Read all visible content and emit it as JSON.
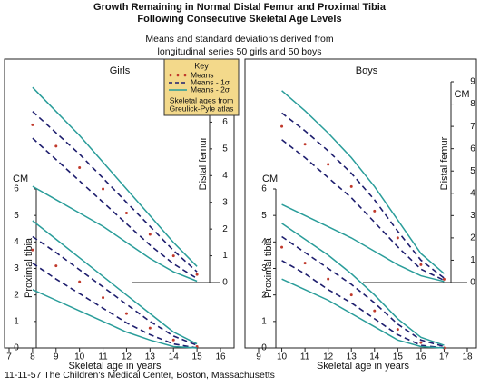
{
  "title": [
    "Growth Remaining in Normal Distal Femur and Proximal Tibia",
    "Following Consecutive Skeletal Age Levels"
  ],
  "subtitle": [
    "Means and standard deviations derived from",
    "longitudinal series 50 girls and 50 boys"
  ],
  "footer": "11-11-57 The Children's Medical Center, Boston, Massachusetts",
  "key": {
    "title": "Key",
    "items": [
      {
        "label": "Means",
        "color": "#c0392b",
        "style": "dots"
      },
      {
        "label": "Means - 1σ",
        "color": "#1e1e6e",
        "style": "dashed"
      },
      {
        "label": "Means - 2σ",
        "color": "#2a9d9a",
        "style": "solid"
      }
    ],
    "note": [
      "Skeletal ages from",
      "Greulick-Pyle atlas"
    ],
    "color": "#f3d98b"
  },
  "chart_data": [
    {
      "type": "line",
      "title": "Girls",
      "xlabel": "Skeletal age in years",
      "x": [
        8,
        9,
        10,
        11,
        12,
        13,
        14,
        15
      ],
      "xlim": [
        7,
        16
      ],
      "xticks": [
        7,
        8,
        9,
        10,
        11,
        12,
        13,
        14,
        15,
        16
      ],
      "tibia": {
        "label": "Proximal tibia",
        "unit": "CM",
        "ylim": [
          0,
          6
        ],
        "yticks": [
          0,
          1,
          2,
          3,
          4,
          5,
          6
        ],
        "series": [
          {
            "style": "solid",
            "color": "#2a9d9a",
            "values": [
              4.8,
              4.1,
              3.4,
              2.7,
              2.0,
              1.3,
              0.6,
              0.15
            ]
          },
          {
            "style": "dashed",
            "color": "#1e1e6e",
            "values": [
              4.2,
              3.6,
              2.95,
              2.3,
              1.65,
              1.0,
              0.45,
              0.1
            ]
          },
          {
            "style": "dots",
            "color": "#c0392b",
            "values": [
              3.7,
              3.1,
              2.5,
              1.9,
              1.3,
              0.75,
              0.3,
              0.05
            ]
          },
          {
            "style": "dashed",
            "color": "#1e1e6e",
            "values": [
              3.2,
              2.6,
              2.05,
              1.5,
              0.95,
              0.5,
              0.15,
              0
            ]
          },
          {
            "style": "solid",
            "color": "#2a9d9a",
            "values": [
              2.2,
              1.8,
              1.4,
              1.0,
              0.6,
              0.3,
              0.05,
              0
            ]
          }
        ]
      },
      "femur": {
        "label": "Distal femur",
        "ylim": [
          0,
          7
        ],
        "yticks": [
          0,
          1,
          2,
          3,
          4,
          5,
          6,
          7
        ],
        "series": [
          {
            "style": "solid",
            "color": "#2a9d9a",
            "values": [
              7.3,
              6.4,
              5.5,
              4.5,
              3.5,
              2.5,
              1.5,
              0.6
            ]
          },
          {
            "style": "dashed",
            "color": "#1e1e6e",
            "values": [
              6.4,
              5.6,
              4.8,
              3.9,
              3.0,
              2.1,
              1.2,
              0.4
            ]
          },
          {
            "style": "dots",
            "color": "#c0392b",
            "values": [
              5.9,
              5.1,
              4.3,
              3.5,
              2.6,
              1.8,
              1.0,
              0.3
            ]
          },
          {
            "style": "dashed",
            "color": "#1e1e6e",
            "values": [
              5.4,
              4.6,
              3.8,
              3.0,
              2.2,
              1.4,
              0.7,
              0.15
            ]
          },
          {
            "style": "solid",
            "color": "#2a9d9a",
            "values": [
              3.6,
              3.1,
              2.6,
              2.1,
              1.5,
              0.9,
              0.4,
              0.05
            ]
          }
        ]
      }
    },
    {
      "type": "line",
      "title": "Boys",
      "xlabel": "Skeletal age in years",
      "x": [
        10,
        11,
        12,
        13,
        14,
        15,
        16,
        17
      ],
      "xlim": [
        9,
        18
      ],
      "xticks": [
        9,
        10,
        11,
        12,
        13,
        14,
        15,
        16,
        17,
        18
      ],
      "tibia": {
        "label": "Proximal tibia",
        "unit": "CM",
        "ylim": [
          0,
          6
        ],
        "yticks": [
          0,
          1,
          2,
          3,
          4,
          5,
          6
        ],
        "series": [
          {
            "style": "solid",
            "color": "#2a9d9a",
            "values": [
              4.7,
              4.1,
              3.5,
              2.8,
              2.0,
              1.1,
              0.4,
              0.1
            ]
          },
          {
            "style": "dashed",
            "color": "#1e1e6e",
            "values": [
              4.2,
              3.6,
              3.0,
              2.4,
              1.7,
              0.9,
              0.3,
              0.05
            ]
          },
          {
            "style": "dots",
            "color": "#c0392b",
            "values": [
              3.8,
              3.2,
              2.6,
              2.0,
              1.4,
              0.7,
              0.2,
              0
            ]
          },
          {
            "style": "dashed",
            "color": "#1e1e6e",
            "values": [
              3.3,
              2.8,
              2.2,
              1.7,
              1.1,
              0.5,
              0.1,
              0
            ]
          },
          {
            "style": "solid",
            "color": "#2a9d9a",
            "values": [
              2.6,
              2.2,
              1.8,
              1.3,
              0.8,
              0.3,
              0.05,
              0
            ]
          }
        ]
      },
      "femur": {
        "label": "Distal femur",
        "unit": "CM",
        "ylim": [
          0,
          9
        ],
        "yticks": [
          0,
          1,
          2,
          3,
          4,
          5,
          6,
          7,
          8,
          9
        ],
        "series": [
          {
            "style": "solid",
            "color": "#2a9d9a",
            "values": [
              8.6,
              7.7,
              6.7,
              5.6,
              4.3,
              2.8,
              1.3,
              0.4
            ]
          },
          {
            "style": "dashed",
            "color": "#1e1e6e",
            "values": [
              7.6,
              6.8,
              5.9,
              4.9,
              3.7,
              2.3,
              1.0,
              0.2
            ]
          },
          {
            "style": "dots",
            "color": "#c0392b",
            "values": [
              7.0,
              6.2,
              5.3,
              4.3,
              3.2,
              2.0,
              0.8,
              0.15
            ]
          },
          {
            "style": "dashed",
            "color": "#1e1e6e",
            "values": [
              6.4,
              5.6,
              4.7,
              3.8,
              2.7,
              1.6,
              0.6,
              0.1
            ]
          },
          {
            "style": "solid",
            "color": "#2a9d9a",
            "values": [
              3.5,
              3.0,
              2.5,
              2.0,
              1.4,
              0.8,
              0.3,
              0.05
            ]
          }
        ]
      }
    }
  ]
}
